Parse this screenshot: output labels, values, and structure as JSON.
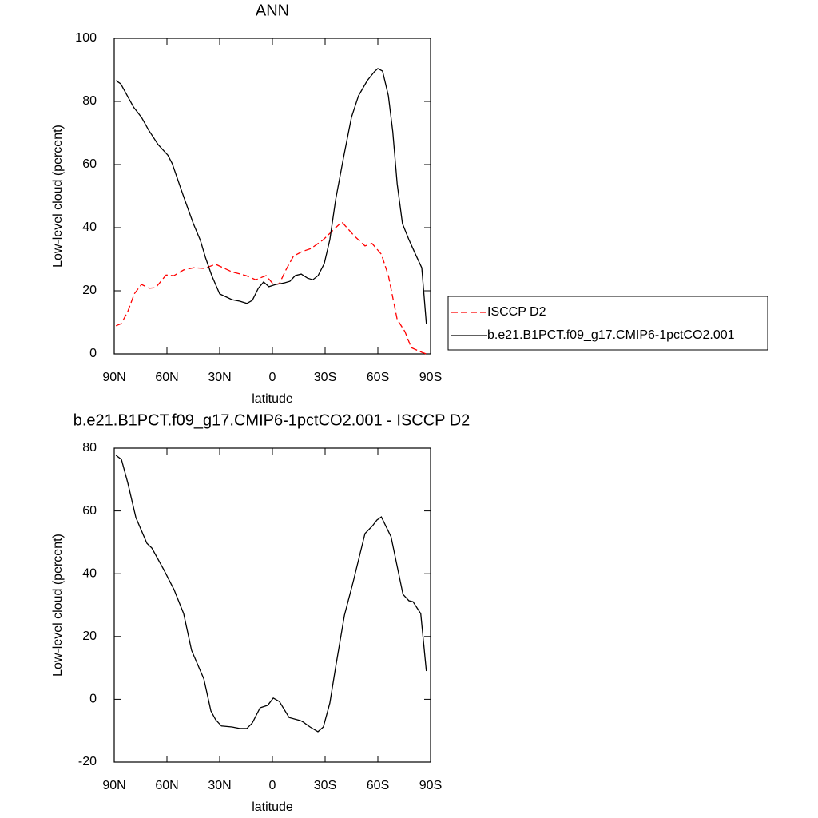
{
  "chart_data": [
    {
      "type": "line",
      "title": "ANN",
      "x_label": "latitude",
      "y_label": "Low-level cloud (percent)",
      "xlim": [
        90,
        -90
      ],
      "ylim": [
        0,
        100
      ],
      "xticks": [
        {
          "value": 90,
          "label": "90N"
        },
        {
          "value": 60,
          "label": "60N"
        },
        {
          "value": 30,
          "label": "30N"
        },
        0,
        {
          "value": -30,
          "label": "30S"
        },
        {
          "value": -60,
          "label": "60S"
        },
        {
          "value": -90,
          "label": "90S"
        }
      ],
      "yticks": [
        0,
        20,
        40,
        60,
        80,
        100
      ],
      "series": [
        {
          "name": "ISCCP D2",
          "color": "#ff0000",
          "dashed": true,
          "x": [
            89,
            86,
            82.3,
            78.6,
            74.5,
            70,
            66.4,
            60.5,
            56,
            50.5,
            44.7,
            38.6,
            32.3,
            23,
            15,
            9.5,
            3.6,
            -0.9,
            -4,
            -7.7,
            -12,
            -16.8,
            -22,
            -29,
            -36,
            -39.5,
            -46.4,
            -52.7,
            -56.7,
            -62,
            -66,
            -71,
            -75.4,
            -79,
            -85,
            -87.6
          ],
          "values": [
            8.9,
            9.6,
            13.4,
            19,
            22,
            20.8,
            21,
            25,
            24.8,
            26.6,
            27.3,
            27.1,
            28.4,
            26,
            24.8,
            23.5,
            24.8,
            21.8,
            22.3,
            26.6,
            31,
            32.4,
            33.4,
            36.2,
            40,
            41.8,
            37.5,
            34.2,
            35,
            31.6,
            24.8,
            10.9,
            7.1,
            2,
            0.5,
            0
          ]
        },
        {
          "name": "b.e21.B1PCT.f09_g17.CMIP6-1pctCO2.001",
          "color": "#000000",
          "dashed": false,
          "x": [
            89,
            86.3,
            79,
            74.5,
            70.5,
            65,
            59.5,
            57,
            51,
            45,
            41,
            38,
            34.5,
            30,
            23,
            18.6,
            14.5,
            11.4,
            8,
            5,
            2,
            -1.8,
            -6.8,
            -10,
            -13,
            -16.4,
            -20,
            -23,
            -26,
            -29.5,
            -32.7,
            -36,
            -40.5,
            -45,
            -49,
            -54,
            -58,
            -60,
            -62.7,
            -66,
            -68.5,
            -71,
            -74,
            -77.7,
            -81.8,
            -85,
            -87.6
          ],
          "values": [
            86.6,
            85.6,
            78.2,
            75,
            71,
            66.3,
            63,
            60.3,
            50.6,
            41.3,
            36,
            30.4,
            24.8,
            19,
            17.2,
            16.7,
            16,
            17,
            20.8,
            22.8,
            21.3,
            22,
            22.5,
            23,
            24.8,
            25.3,
            24,
            23.5,
            24.8,
            28.6,
            36.2,
            48.9,
            62.3,
            75,
            81.8,
            86.6,
            89.4,
            90.4,
            89.6,
            81.8,
            70.4,
            53.9,
            41.3,
            36.2,
            31.1,
            27.3,
            9.6
          ]
        }
      ]
    },
    {
      "type": "line",
      "title": "b.e21.B1PCT.f09_g17.CMIP6-1pctCO2.001 - ISCCP D2",
      "x_label": "latitude",
      "y_label": "Low-level cloud (percent)",
      "xlim": [
        90,
        -90
      ],
      "ylim": [
        -20,
        80
      ],
      "xticks": [
        {
          "value": 90,
          "label": "90N"
        },
        {
          "value": 60,
          "label": "60N"
        },
        {
          "value": 30,
          "label": "30N"
        },
        0,
        {
          "value": -30,
          "label": "30S"
        },
        {
          "value": -60,
          "label": "60S"
        },
        {
          "value": -90,
          "label": "90S"
        }
      ],
      "yticks": [
        -20,
        0,
        20,
        40,
        60,
        80
      ],
      "color": "#000000",
      "x": [
        89,
        85.9,
        82.3,
        77.7,
        71.4,
        68.6,
        61.8,
        56,
        50.5,
        46,
        39,
        35,
        32.3,
        29,
        23,
        18.6,
        14.5,
        11.4,
        7,
        2.7,
        -0.5,
        -4,
        -9.5,
        -16,
        -17.7,
        -21.4,
        -25.9,
        -29,
        -32.7,
        -36,
        -41,
        -46,
        -52.7,
        -57,
        -59.5,
        -62,
        -67.5,
        -74.3,
        -77.7,
        -80,
        -84.4,
        -87.6
      ],
      "values": [
        77.7,
        76.4,
        69,
        57.9,
        49.7,
        48.2,
        41.3,
        35,
        27.3,
        15.6,
        6.5,
        -3.7,
        -6.5,
        -8.5,
        -8.8,
        -9.3,
        -9.3,
        -7.5,
        -2.7,
        -1.9,
        0.4,
        -0.7,
        -5.8,
        -6.8,
        -7.3,
        -8.8,
        -10.3,
        -8.8,
        -1.2,
        10.3,
        26.8,
        37.5,
        52.8,
        55.3,
        57.1,
        58.1,
        51.8,
        33.4,
        31.4,
        31.1,
        27.3,
        9
      ]
    }
  ]
}
